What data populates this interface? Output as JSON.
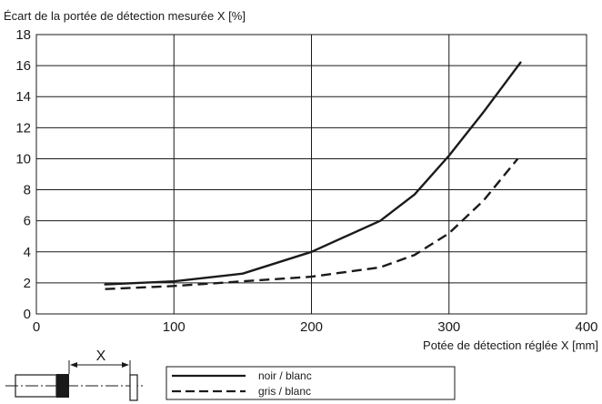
{
  "chart_data": {
    "type": "line",
    "ylabel": "Écart de la portée de détection mesurée X [%]",
    "xlabel": "Potée de détection réglée X [mm]",
    "xlim": [
      0,
      400
    ],
    "ylim": [
      0,
      18
    ],
    "x_ticks": [
      "0",
      "100",
      "200",
      "300",
      "400"
    ],
    "y_ticks": [
      "0",
      "2",
      "4",
      "6",
      "8",
      "10",
      "12",
      "14",
      "16",
      "18"
    ],
    "grid": true,
    "legend_position": "bottom",
    "series": [
      {
        "name": "noir / blanc",
        "style": "solid",
        "color": "#1a1a1a",
        "x": [
          50,
          100,
          150,
          200,
          250,
          275,
          300,
          325,
          352
        ],
        "y": [
          1.9,
          2.1,
          2.6,
          4.0,
          6.0,
          7.7,
          10.2,
          13.0,
          16.2
        ]
      },
      {
        "name": "gris / blanc",
        "style": "dashed",
        "color": "#1a1a1a",
        "x": [
          50,
          100,
          150,
          200,
          250,
          275,
          300,
          325,
          350
        ],
        "y": [
          1.6,
          1.8,
          2.1,
          2.4,
          3.0,
          3.8,
          5.2,
          7.3,
          10.0
        ]
      }
    ],
    "diagram": {
      "distance_label": "X"
    }
  }
}
